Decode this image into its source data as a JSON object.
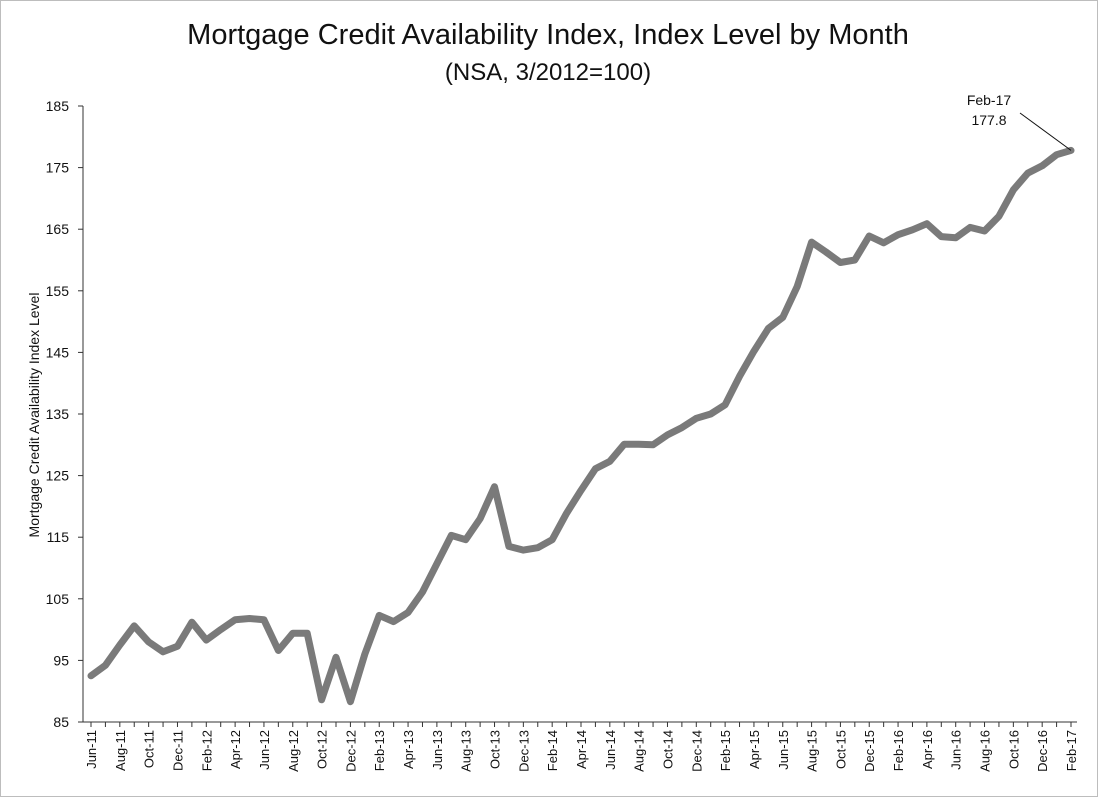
{
  "chart_data": {
    "type": "line",
    "title": "Mortgage Credit Availability Index, Index Level by Month",
    "subtitle": "(NSA, 3/2012=100)",
    "xlabel": "",
    "ylabel": "Mortgage Credit Availability Index Level",
    "ylim": [
      85,
      185
    ],
    "yticks": [
      85,
      95,
      105,
      115,
      125,
      135,
      145,
      155,
      165,
      175,
      185
    ],
    "grid": false,
    "line_color": "#7a7a7a",
    "x": [
      "Jun-11",
      "Jul-11",
      "Aug-11",
      "Sep-11",
      "Oct-11",
      "Nov-11",
      "Dec-11",
      "Jan-12",
      "Feb-12",
      "Mar-12",
      "Apr-12",
      "May-12",
      "Jun-12",
      "Jul-12",
      "Aug-12",
      "Sep-12",
      "Oct-12",
      "Nov-12",
      "Dec-12",
      "Jan-13",
      "Feb-13",
      "Mar-13",
      "Apr-13",
      "May-13",
      "Jun-13",
      "Jul-13",
      "Aug-13",
      "Sep-13",
      "Oct-13",
      "Nov-13",
      "Dec-13",
      "Jan-14",
      "Feb-14",
      "Mar-14",
      "Apr-14",
      "May-14",
      "Jun-14",
      "Jul-14",
      "Aug-14",
      "Sep-14",
      "Oct-14",
      "Nov-14",
      "Dec-14",
      "Jan-15",
      "Feb-15",
      "Mar-15",
      "Apr-15",
      "May-15",
      "Jun-15",
      "Jul-15",
      "Aug-15",
      "Sep-15",
      "Oct-15",
      "Nov-15",
      "Dec-15",
      "Jan-16",
      "Feb-16",
      "Mar-16",
      "Apr-16",
      "May-16",
      "Jun-16",
      "Jul-16",
      "Aug-16",
      "Sep-16",
      "Oct-16",
      "Nov-16",
      "Dec-16",
      "Jan-17",
      "Feb-17"
    ],
    "xtick_labels": [
      "Jun-11",
      "Aug-11",
      "Oct-11",
      "Dec-11",
      "Feb-12",
      "Apr-12",
      "Jun-12",
      "Aug-12",
      "Oct-12",
      "Dec-12",
      "Feb-13",
      "Apr-13",
      "Jun-13",
      "Aug-13",
      "Oct-13",
      "Dec-13",
      "Feb-14",
      "Apr-14",
      "Jun-14",
      "Aug-14",
      "Oct-14",
      "Dec-14",
      "Feb-15",
      "Apr-15",
      "Jun-15",
      "Aug-15",
      "Oct-15",
      "Dec-15",
      "Feb-16",
      "Apr-16",
      "Jun-16",
      "Aug-16",
      "Oct-16",
      "Dec-16",
      "Feb-17"
    ],
    "series": [
      {
        "values": [
          92.5,
          94.2,
          97.5,
          100.6,
          98.0,
          96.4,
          97.3,
          101.2,
          98.3,
          100.0,
          101.6,
          101.8,
          101.6,
          96.6,
          99.4,
          99.4,
          88.6,
          95.5,
          88.3,
          96.0,
          102.3,
          101.3,
          102.8,
          106.1,
          110.7,
          115.3,
          114.6,
          118.0,
          123.2,
          113.5,
          112.9,
          113.3,
          114.6,
          118.9,
          122.6,
          126.1,
          127.3,
          130.1,
          130.1,
          130.0,
          131.6,
          132.8,
          134.3,
          135.0,
          136.5,
          141.1,
          145.2,
          148.9,
          150.7,
          155.7,
          162.9,
          161.3,
          159.6,
          160.0,
          163.9,
          162.8,
          164.1,
          164.9,
          165.9,
          163.8,
          163.6,
          165.3,
          164.7,
          167.1,
          171.4,
          174.1,
          175.3,
          177.1,
          177.8
        ]
      }
    ],
    "annotation": {
      "label": "Feb-17",
      "value_text": "177.8",
      "x": "Feb-17",
      "y": 177.8
    }
  }
}
